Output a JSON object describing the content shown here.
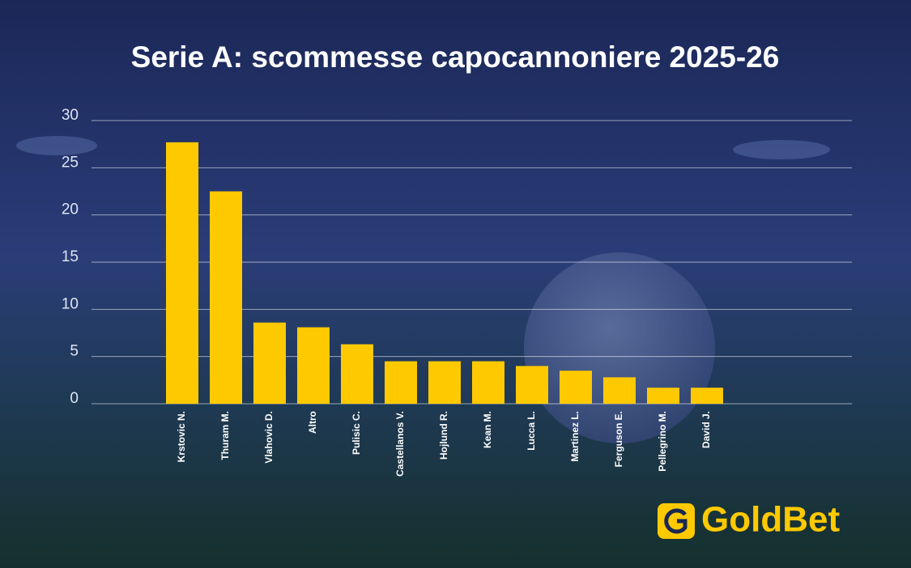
{
  "chart_data": {
    "type": "bar",
    "title": "Serie A: scommesse capocannoniere 2025-26",
    "categories": [
      "Krstovic N.",
      "Thuram M.",
      "Vlahovic D.",
      "Altro",
      "Pulisic C.",
      "Castellanos V.",
      "Hojlund R.",
      "Kean M.",
      "Lucca L.",
      "Martinez L.",
      "Ferguson E.",
      "Pellegrino M.",
      "David J."
    ],
    "values": [
      27.7,
      22.5,
      8.6,
      8.1,
      6.3,
      4.5,
      4.5,
      4.5,
      4.0,
      3.5,
      2.8,
      1.7,
      1.7
    ],
    "color": "#ffc900",
    "ylim": [
      0,
      30
    ],
    "yticks": [
      0,
      5,
      10,
      15,
      20,
      25,
      30
    ],
    "grid": true
  },
  "logo": {
    "text": "GoldBet"
  }
}
